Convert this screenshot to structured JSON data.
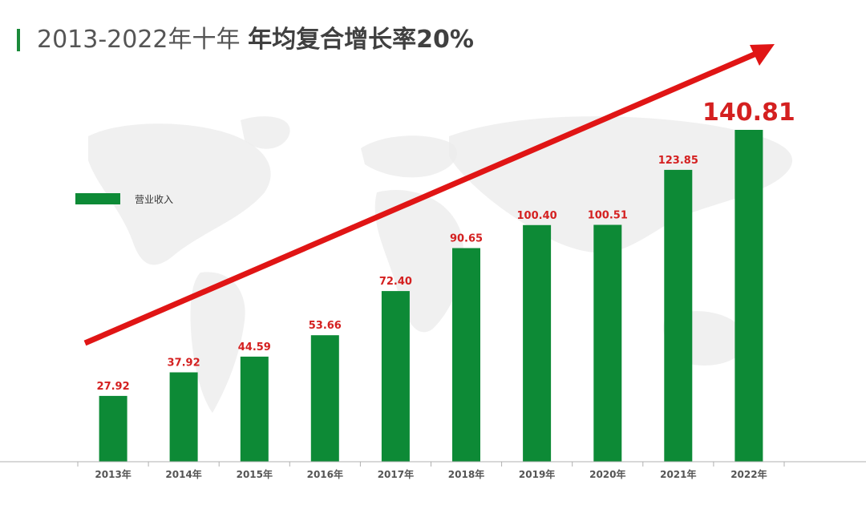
{
  "title": {
    "main": "2013-2022年十年",
    "emphasis": "年均复合增长率20%"
  },
  "colors": {
    "bar": "#0d8a36",
    "accent_bar": "#1a8a3a",
    "label": "#d42020",
    "arrow": "#e01515",
    "axis": "#b0b0b0",
    "map": "#ececec"
  },
  "chart_data": {
    "type": "bar",
    "categories": [
      "2013年",
      "2014年",
      "2015年",
      "2016年",
      "2017年",
      "2018年",
      "2019年",
      "2020年",
      "2021年",
      "2022年"
    ],
    "series": [
      {
        "name": "营业收入",
        "values": [
          27.92,
          37.92,
          44.59,
          53.66,
          72.4,
          90.65,
          100.4,
          100.51,
          123.85,
          140.81
        ]
      }
    ],
    "data_labels": [
      "27.92",
      "37.92",
      "44.59",
      "53.66",
      "72.40",
      "90.65",
      "100.40",
      "100.51",
      "123.85",
      "140.81"
    ],
    "highlight_index": 9,
    "ylim": [
      0,
      150
    ],
    "grid": false,
    "legend": "left",
    "trend_arrow": true
  }
}
